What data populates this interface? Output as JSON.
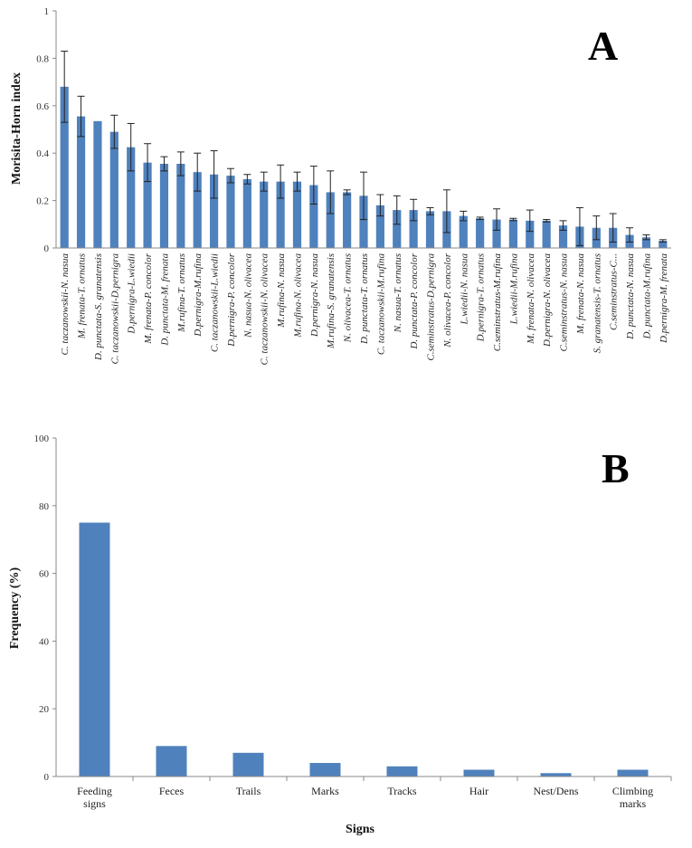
{
  "chart_data": [
    {
      "type": "bar",
      "panel_label": "A",
      "ylabel": "Morisita-Horn index",
      "xlabel": "",
      "ylim": [
        0,
        1
      ],
      "yticks": [
        0,
        0.2,
        0.4,
        0.6,
        0.8,
        1
      ],
      "ytick_labels": [
        "0",
        "0.2",
        "0.4",
        "0.6",
        "0.8",
        "1"
      ],
      "grid": false,
      "error_bars": true,
      "bar_color": "#4F81BD",
      "categories": [
        "C. taczanowskii-N. nasua",
        "M. frenata-T. ornatus",
        "D. punctata-S. granatensis",
        "C. taczanowskii-D.pernigra",
        "D.pernigra-L.wiedii",
        "M. frenata-P. concolor",
        "D. punctata-M. frenata",
        "M.rufina-T. ornatus",
        "D.pernigra-M.rufina",
        "C. taczanowskii-L.wiedii",
        "D.pernigra-P. concolor",
        "N. nasua-N. olivacea",
        "C. taczanowskii-N. olivacea",
        "M.rufina-N. nasua",
        "M.rufina-N. olivacea",
        "D.pernigra-N. nasua",
        "M.rufina-S. granatensis",
        "N. olivacea-T. ornatus",
        "D. punctata-T. ornatus",
        "C. taczanowskii-M.rufina",
        "N. nasua-T. ornatus",
        "D. punctata-P. concolor",
        "C.seminstratus-D.pernigra",
        "N. olivacea-P. concolor",
        "L.wiedii-N. nasua",
        "D.pernigra-T. ornatus",
        "C.seminstratus-M.rufina",
        "L.wiedii-M.rufina",
        "M. frenata-N. olivacea",
        "D.pernigra-N. olivacea",
        "C.seminstratus-N. nasua",
        "M. frenata-N. nasua",
        "S. granatensis-T. ornatus",
        "C.seminstratus-C...",
        "D. punctata-N. nasua",
        "D. punctata-M.rufina",
        "D.pernigra-M. frenata"
      ],
      "values": [
        0.68,
        0.555,
        0.535,
        0.49,
        0.425,
        0.36,
        0.355,
        0.355,
        0.32,
        0.31,
        0.305,
        0.29,
        0.28,
        0.28,
        0.28,
        0.265,
        0.235,
        0.235,
        0.22,
        0.18,
        0.16,
        0.16,
        0.155,
        0.155,
        0.135,
        0.125,
        0.12,
        0.12,
        0.115,
        0.115,
        0.095,
        0.09,
        0.085,
        0.085,
        0.055,
        0.045,
        0.03
      ],
      "errors": [
        0.15,
        0.085,
        0.0,
        0.07,
        0.1,
        0.08,
        0.03,
        0.05,
        0.08,
        0.1,
        0.03,
        0.02,
        0.04,
        0.07,
        0.04,
        0.08,
        0.09,
        0.01,
        0.1,
        0.045,
        0.06,
        0.045,
        0.015,
        0.09,
        0.02,
        0.005,
        0.045,
        0.005,
        0.045,
        0.005,
        0.02,
        0.08,
        0.05,
        0.06,
        0.03,
        0.01,
        0.005
      ]
    },
    {
      "type": "bar",
      "panel_label": "B",
      "ylabel": "Frequency (%)",
      "xlabel": "Signs",
      "ylim": [
        0,
        100
      ],
      "yticks": [
        0,
        20,
        40,
        60,
        80,
        100
      ],
      "ytick_labels": [
        "0",
        "20",
        "40",
        "60",
        "80",
        "100"
      ],
      "grid": false,
      "error_bars": false,
      "bar_color": "#4F81BD",
      "categories": [
        [
          "Feeding",
          "signs"
        ],
        [
          "Feces"
        ],
        [
          "Trails"
        ],
        [
          "Marks"
        ],
        [
          "Tracks"
        ],
        [
          "Hair"
        ],
        [
          "Nest/Dens"
        ],
        [
          "Climbing",
          "marks"
        ]
      ],
      "values": [
        75,
        9,
        7,
        4,
        3,
        2,
        1,
        2
      ]
    }
  ]
}
